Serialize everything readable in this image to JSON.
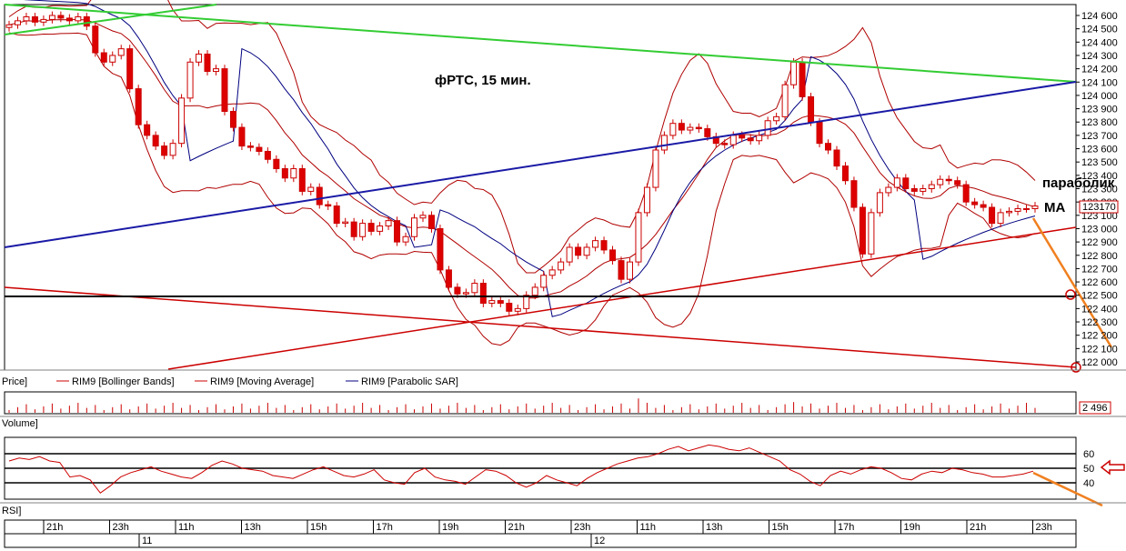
{
  "chart_data": {
    "type": "candlestick",
    "instrument": "RIM9",
    "annotation_title": "фРТС,  15 мин.",
    "annotation_parabolic": "параболик",
    "annotation_ma": "МА",
    "last_price_label": "123170",
    "volume_value_label": "2 496",
    "price_panel_label": "Price]",
    "volume_panel_label": "Volume]",
    "rsi_panel_label": "RSI]",
    "legend": [
      {
        "label": "RIM9 [Bollinger Bands]",
        "color": "#cc0000"
      },
      {
        "label": "RIM9 [Moving Average]",
        "color": "#cc0000"
      },
      {
        "label": "RIM9 [Parabolic SAR]",
        "color": "#000080"
      }
    ],
    "price_axis": {
      "ylim": [
        121950,
        124650
      ],
      "ticks": [
        "124 600",
        "124 500",
        "124 400",
        "124 300",
        "124 200",
        "124 100",
        "124 000",
        "123 900",
        "123 800",
        "123 700",
        "123 600",
        "123 500",
        "123 400",
        "123 300",
        "123 200",
        "123 100",
        "123 000",
        "122 900",
        "122 800",
        "122 700",
        "122 600",
        "122 500",
        "122 400",
        "122 300",
        "122 200",
        "122 100",
        "122 000"
      ]
    },
    "rsi_axis": {
      "ylim": [
        30,
        70
      ],
      "ticks": [
        "60",
        "50",
        "40"
      ],
      "levels": [
        60,
        50,
        40
      ]
    },
    "time_axis": {
      "labels": [
        "21h",
        "23h",
        "11h",
        "13h",
        "15h",
        "17h",
        "19h",
        "21h",
        "23h",
        "11h",
        "13h",
        "15h",
        "17h",
        "19h",
        "21h",
        "23h"
      ],
      "days": [
        "11",
        "12"
      ]
    },
    "close_series": [
      124530,
      124560,
      124590,
      124550,
      124570,
      124600,
      124580,
      124560,
      124590,
      124520,
      124320,
      124250,
      124300,
      124350,
      124050,
      123780,
      123700,
      123620,
      123550,
      123640,
      123980,
      124250,
      124310,
      124180,
      124200,
      123880,
      123760,
      123620,
      123610,
      123580,
      123520,
      123450,
      123380,
      123450,
      123280,
      123310,
      123180,
      123170,
      123040,
      123050,
      122940,
      123040,
      122980,
      123020,
      123060,
      122900,
      122940,
      123080,
      123100,
      123000,
      122690,
      122560,
      122510,
      122520,
      122590,
      122440,
      122460,
      122440,
      122380,
      122400,
      122500,
      122560,
      122650,
      122690,
      122750,
      122860,
      122800,
      122860,
      122910,
      122840,
      122760,
      122620,
      122750,
      123120,
      123310,
      123590,
      123700,
      123790,
      123740,
      123760,
      123750,
      123690,
      123640,
      123630,
      123700,
      123680,
      123660,
      123700,
      123810,
      123840,
      124080,
      124250,
      123990,
      123800,
      123640,
      123590,
      123470,
      123360,
      123160,
      122810,
      123120,
      123270,
      123310,
      123380,
      123300,
      123280,
      123300,
      123330,
      123370,
      123360,
      123330,
      123200,
      123180,
      123160,
      123040,
      123120,
      123130,
      123150,
      123150,
      123170
    ],
    "rsi_series": [
      55,
      57,
      56,
      58,
      55,
      54,
      44,
      45,
      42,
      33,
      38,
      44,
      47,
      49,
      51,
      48,
      46,
      44,
      43,
      47,
      52,
      55,
      53,
      50,
      49,
      48,
      45,
      44,
      43,
      46,
      49,
      51,
      48,
      45,
      44,
      46,
      49,
      42,
      40,
      39,
      47,
      50,
      44,
      42,
      41,
      39,
      44,
      49,
      48,
      45,
      40,
      37,
      40,
      45,
      42,
      40,
      38,
      43,
      47,
      50,
      53,
      55,
      57,
      58,
      60,
      63,
      65,
      62,
      64,
      66,
      65,
      63,
      62,
      64,
      61,
      58,
      55,
      49,
      46,
      41,
      38,
      45,
      48,
      46,
      49,
      51,
      50,
      47,
      43,
      42,
      46,
      48,
      47,
      50,
      49,
      47,
      46,
      44,
      44,
      45,
      46,
      48
    ],
    "volume_value": 2496
  }
}
